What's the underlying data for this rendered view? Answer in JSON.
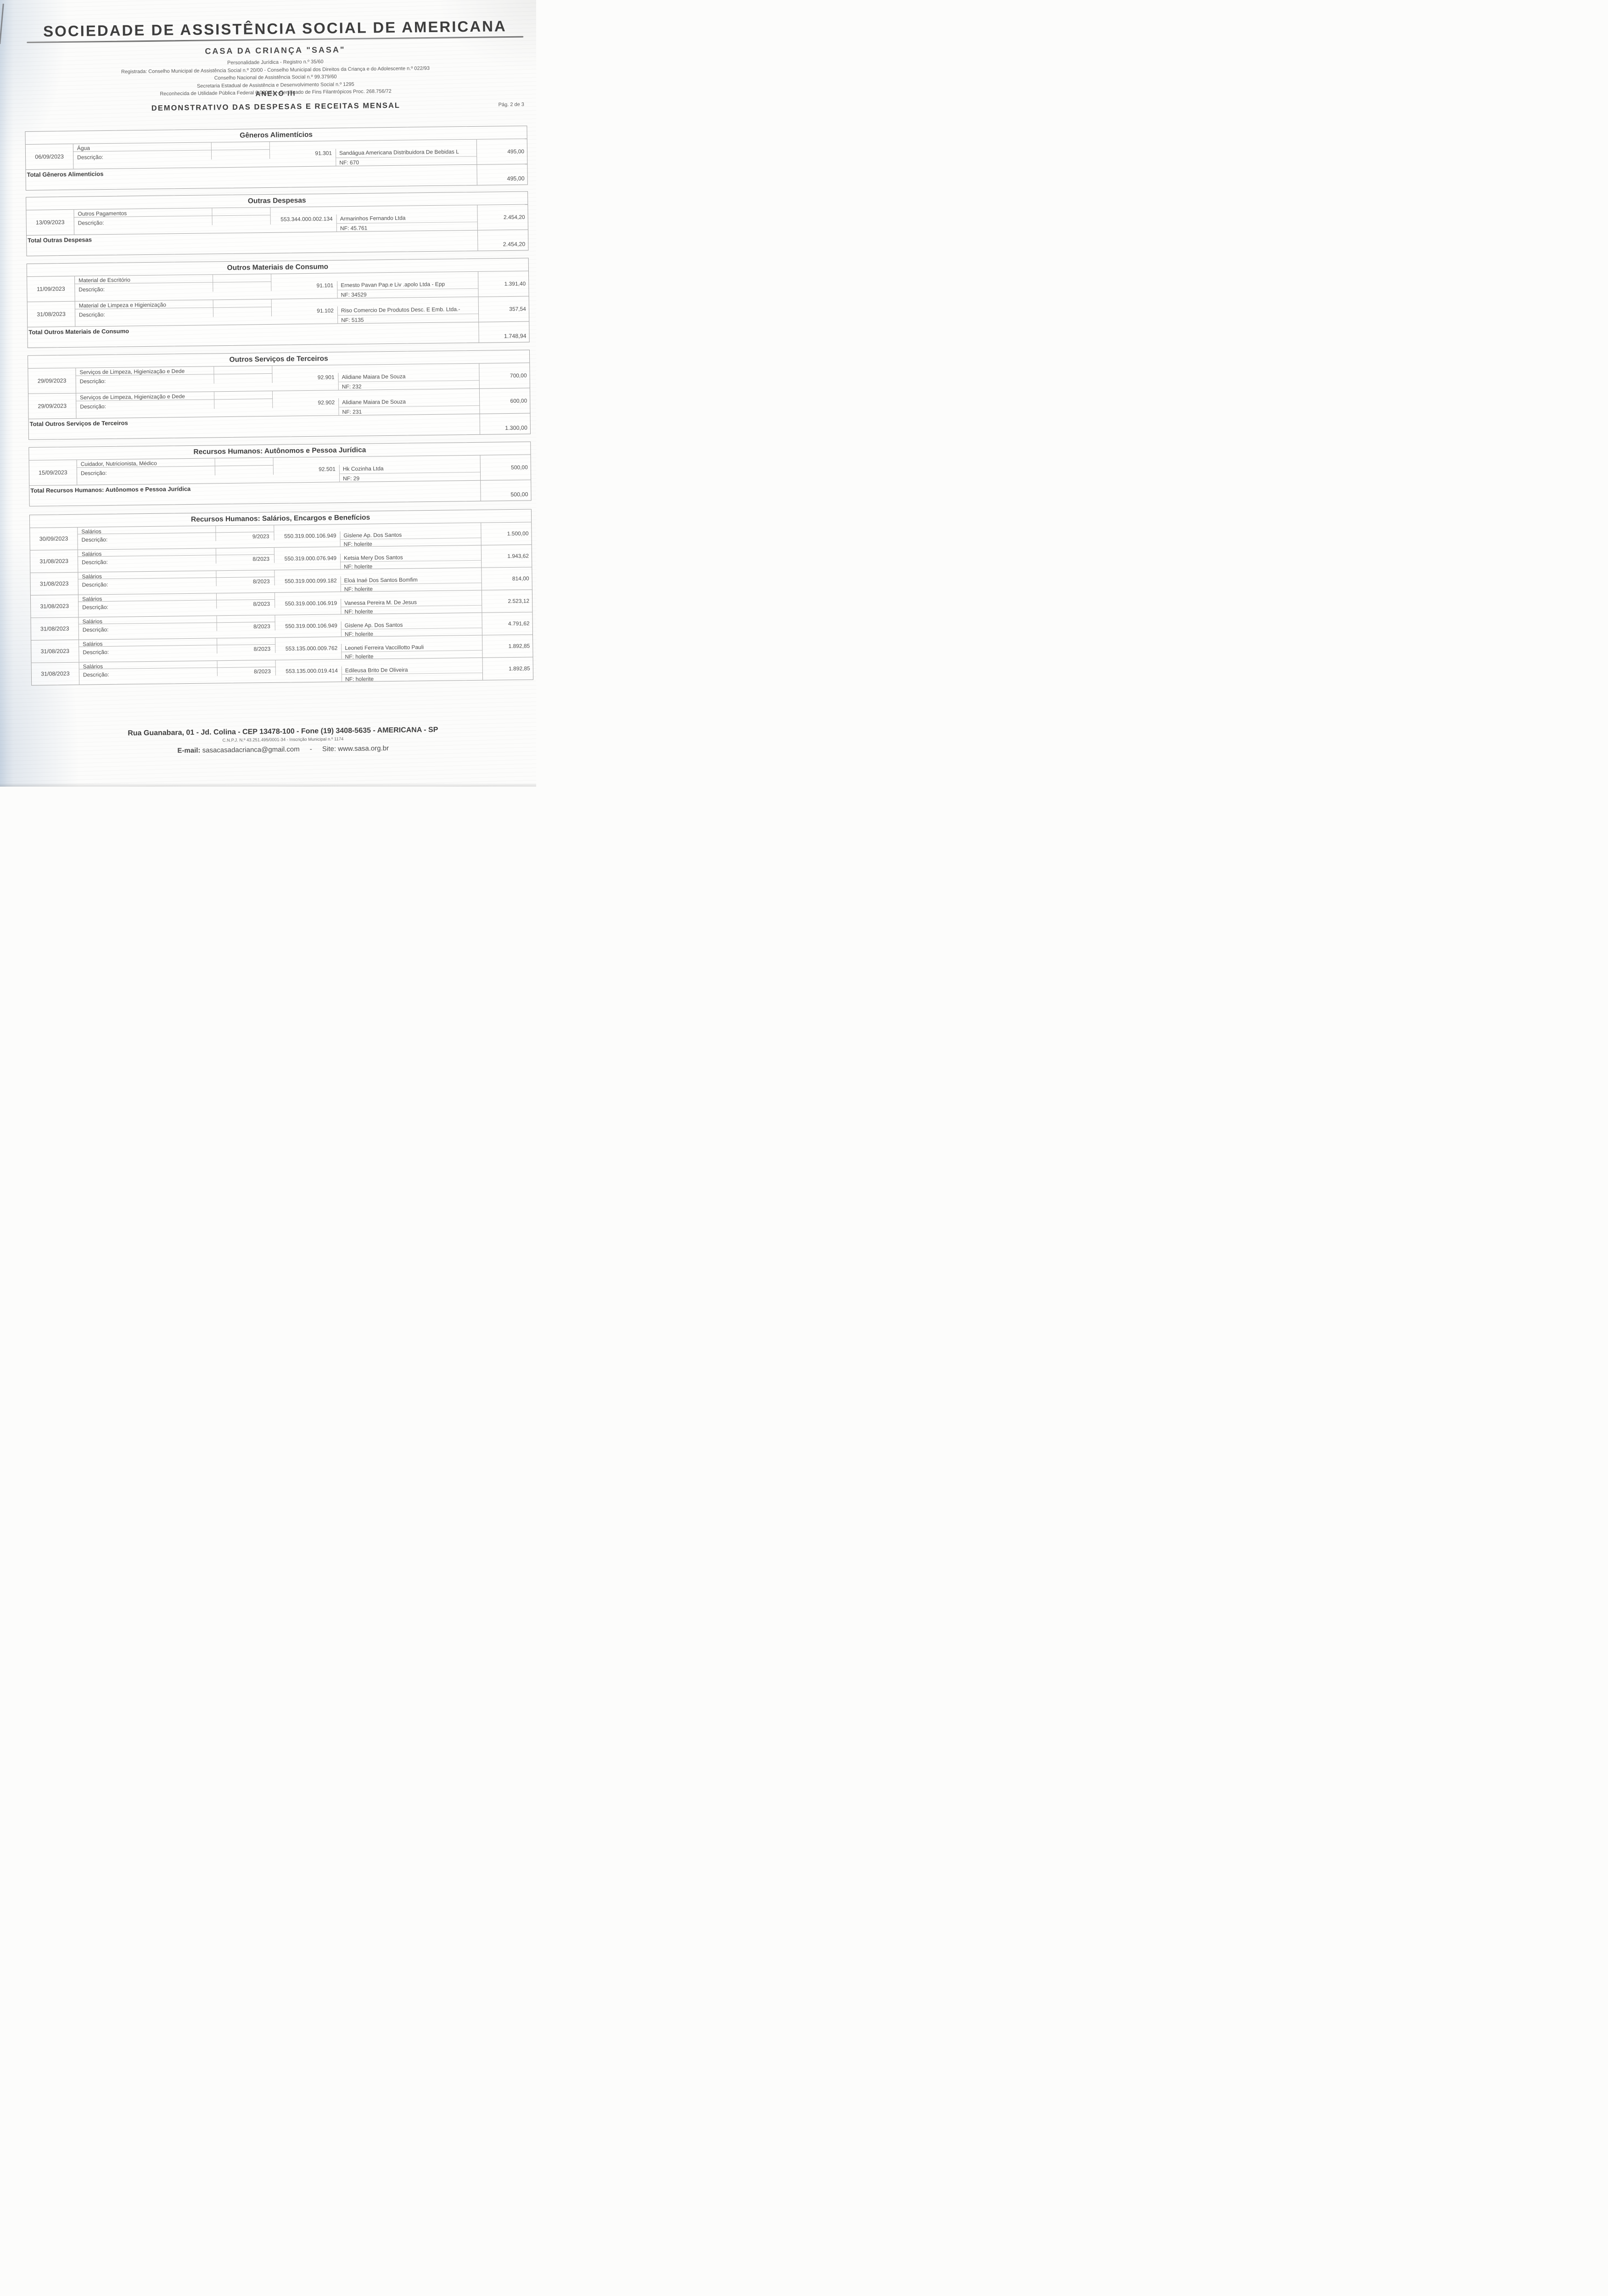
{
  "theme": {
    "paper": "#fcfcfb",
    "ink": "#474747",
    "ink_strong": "#3b3b3b",
    "table_border": "#a8a8a8",
    "scan_edge_blue": "#96afca"
  },
  "header": {
    "org_title": "SOCIEDADE DE ASSISTÊNCIA SOCIAL DE AMERICANA",
    "org_subtitle": "CASA DA CRIANÇA \"SASA\"",
    "registration_lines": [
      "Personalidade Jurídica - Registro n.º 35/60",
      "Registrada: Conselho Municipal de Assistência Social n.º 20/00 - Conselho Municipal dos Direitos da Criança e do Adolescente n.º 022/93",
      "Conselho Nacional de Assistência Social n.º 99.379/60",
      "Secretaria Estadual de Assistência e Desenvolvimento Social n.º 1295",
      "Reconhecida de Utilidade Pública Federal 6.080/61 - Certificado de Fins Filantrópicos Proc. 268.756/72"
    ],
    "annex": "ANEXO III",
    "doc_title": "DEMONSTRATIVO DAS DESPESAS E RECEITAS MENSAL",
    "page_indicator": "Pág. 2 de 3"
  },
  "sections": [
    {
      "title": "Gêneros Alimentícios",
      "total_label": "Total Gêneros Alimenticios",
      "total_value": "495,00",
      "entries": [
        {
          "date": "06/09/2023",
          "category": "Água",
          "desc_label": "Descrição:",
          "competencia": "",
          "code": "91.301",
          "vendor": "Sandágua Americana Distribuidora De Bebidas L",
          "nf": "NF: 670",
          "value": "495,00"
        }
      ]
    },
    {
      "title": "Outras Despesas",
      "total_label": "Total Outras Despesas",
      "total_value": "2.454,20",
      "entries": [
        {
          "date": "13/09/2023",
          "category": "Outros Pagamentos",
          "desc_label": "Descrição:",
          "competencia": "",
          "code": "553.344.000.002.134",
          "vendor": "Armarinhos Fernando Ltda",
          "nf": "NF: 45.761",
          "value": "2.454,20"
        }
      ]
    },
    {
      "title": "Outros Materiais de Consumo",
      "total_label": "Total Outros Materiais de Consumo",
      "total_value": "1.748,94",
      "entries": [
        {
          "date": "11/09/2023",
          "category": "Material de Escritório",
          "desc_label": "Descrição:",
          "competencia": "",
          "code": "91.101",
          "vendor": "Ernesto Pavan Pap.e Liv .apolo Ltda - Epp",
          "nf": "NF: 34529",
          "value": "1.391,40"
        },
        {
          "date": "31/08/2023",
          "category": "Material de Limpeza e Higienização",
          "desc_label": "Descrição:",
          "competencia": "",
          "code": "91.102",
          "vendor": "Riso Comercio De Produtos Desc. E Emb. Ltda.-",
          "nf": "NF: 5135",
          "value": "357,54"
        }
      ]
    },
    {
      "title": "Outros Serviços de Terceiros",
      "total_label": "Total Outros Serviços de Terceiros",
      "total_value": "1.300,00",
      "entries": [
        {
          "date": "29/09/2023",
          "category": "Serviços de Limpeza, Higienização e Dede",
          "desc_label": "Descrição:",
          "competencia": "",
          "code": "92.901",
          "vendor": "Alidiane Maiara De Souza",
          "nf": "NF: 232",
          "value": "700,00"
        },
        {
          "date": "29/09/2023",
          "category": "Serviços de Limpeza, Higienização e Dede",
          "desc_label": "Descrição:",
          "competencia": "",
          "code": "92.902",
          "vendor": "Alidiane Maiara De Souza",
          "nf": "NF: 231",
          "value": "600,00"
        }
      ]
    },
    {
      "title": "Recursos Humanos: Autônomos e Pessoa Jurídica",
      "total_label": "Total Recursos Humanos: Autônomos e Pessoa Jurídica",
      "total_value": "500,00",
      "entries": [
        {
          "date": "15/09/2023",
          "category": "Cuidador, Nutricionista, Médico",
          "desc_label": "Descrição:",
          "competencia": "",
          "code": "92.501",
          "vendor": "Hk Cozinha Ltda",
          "nf": "NF: 29",
          "value": "500,00"
        }
      ]
    },
    {
      "title": "Recursos Humanos: Salários, Encargos e Benefícios",
      "total_label": "",
      "total_value": "",
      "entries": [
        {
          "date": "30/09/2023",
          "category": "Salários",
          "desc_label": "Descrição:",
          "competencia": "9/2023",
          "code": "550.319.000.106.949",
          "vendor": "Gislene Ap. Dos Santos",
          "nf": "NF: holerite",
          "value": "1.500,00"
        },
        {
          "date": "31/08/2023",
          "category": "Salários",
          "desc_label": "Descrição:",
          "competencia": "8/2023",
          "code": "550.319.000.076.949",
          "vendor": "Ketsia Mery Dos Santos",
          "nf": "NF: holerite",
          "value": "1.943,62"
        },
        {
          "date": "31/08/2023",
          "category": "Salários",
          "desc_label": "Descrição:",
          "competencia": "8/2023",
          "code": "550.319.000.099.182",
          "vendor": "Eloá Inaé Dos Santos Bomfim",
          "nf": "NF: holerite",
          "value": "814,00"
        },
        {
          "date": "31/08/2023",
          "category": "Salários",
          "desc_label": "Descrição:",
          "competencia": "8/2023",
          "code": "550.319.000.106.919",
          "vendor": "Vanessa Pereira M. De Jesus",
          "nf": "NF: holerite",
          "value": "2.523,12"
        },
        {
          "date": "31/08/2023",
          "category": "Salários",
          "desc_label": "Descrição:",
          "competencia": "8/2023",
          "code": "550.319.000.106.949",
          "vendor": "Gislene Ap. Dos Santos",
          "nf": "NF: holerite",
          "value": "4.791,62"
        },
        {
          "date": "31/08/2023",
          "category": "Salários",
          "desc_label": "Descrição:",
          "competencia": "8/2023",
          "code": "553.135.000.009.762",
          "vendor": "Leoneti Ferreira Vaccillotto Pauli",
          "nf": "NF: holerite",
          "value": "1.892,85"
        },
        {
          "date": "31/08/2023",
          "category": "Salários",
          "desc_label": "Descrição:",
          "competencia": "8/2023",
          "code": "553.135.000.019.414",
          "vendor": "Edileusa Brito De Oliveira",
          "nf": "NF: holerite",
          "value": "1.892,85"
        }
      ]
    }
  ],
  "footer": {
    "address": "Rua Guanabara, 01 - Jd. Colina - CEP 13478-100 - Fone (19) 3408-5635 - AMERICANA - SP",
    "registry": "C.N.P.J. N.º 43.251.495/0001-34  -  Inscrição Municipal n.º 1174",
    "email_label": "E-mail:",
    "email": "sasacasadacrianca@gmail.com",
    "separator": "-",
    "site_label": "Site:",
    "site": "www.sasa.org.br"
  }
}
